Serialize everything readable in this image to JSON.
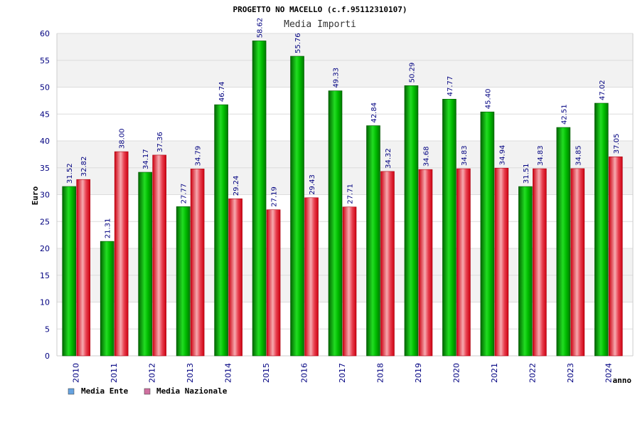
{
  "chart_data": {
    "type": "bar",
    "title": "PROGETTO NO MACELLO (c.f.95112310107)",
    "subtitle": "Media Importi",
    "xlabel": "anno",
    "ylabel": "Euro",
    "ylim": [
      0,
      60
    ],
    "y_ticks": [
      "0",
      "5",
      "10",
      "15",
      "20",
      "25",
      "30",
      "35",
      "40",
      "45",
      "50",
      "55",
      "60"
    ],
    "grid": true,
    "legend_position": "bottom-left",
    "categories": [
      "2010",
      "2011",
      "2012",
      "2013",
      "2014",
      "2015",
      "2016",
      "2017",
      "2018",
      "2019",
      "2020",
      "2021",
      "2022",
      "2023",
      "2024"
    ],
    "series": [
      {
        "name": "Media Ente",
        "color": "#00aa00",
        "legend_color": "#66a3e0",
        "values": [
          31.52,
          21.31,
          34.17,
          27.77,
          46.74,
          58.62,
          55.76,
          49.33,
          42.84,
          50.29,
          47.77,
          45.4,
          31.51,
          42.51,
          47.02
        ],
        "labels": [
          "31.52",
          "21.31",
          "34.17",
          "27.77",
          "46.74",
          "58.62",
          "55.76",
          "49.33",
          "42.84",
          "50.29",
          "47.77",
          "45.40",
          "31.51",
          "42.51",
          "47.02"
        ]
      },
      {
        "name": "Media Nazionale",
        "color": "#e0202a",
        "legend_color": "#d070a0",
        "values": [
          32.82,
          38.0,
          37.36,
          34.79,
          29.24,
          27.19,
          29.43,
          27.71,
          34.32,
          34.68,
          34.83,
          34.94,
          34.83,
          34.85,
          37.05
        ],
        "labels": [
          "32.82",
          "38.00",
          "37.36",
          "34.79",
          "29.24",
          "27.19",
          "29.43",
          "27.71",
          "34.32",
          "34.68",
          "34.83",
          "34.94",
          "34.83",
          "34.85",
          "37.05"
        ]
      }
    ]
  }
}
